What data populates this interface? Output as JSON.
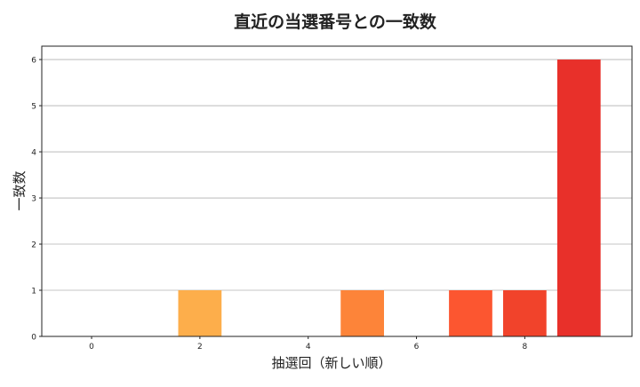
{
  "chart_data": {
    "type": "bar",
    "title": "直近の当選番号との一致数",
    "xlabel": "抽選回（新しい順）",
    "ylabel": "一致数",
    "x": [
      0,
      1,
      2,
      3,
      4,
      5,
      6,
      7,
      8,
      9
    ],
    "values": [
      0,
      0,
      1,
      0,
      0,
      1,
      0,
      1,
      1,
      6
    ],
    "colors": [
      "#fec25c",
      "#fdb851",
      "#fdae4b",
      "#fd9f44",
      "#fd913e",
      "#fd8439",
      "#fc6d33",
      "#fc5630",
      "#f1432b",
      "#e8302a"
    ],
    "xticks": [
      0,
      2,
      4,
      6,
      8
    ],
    "yticks": [
      0,
      1,
      2,
      3,
      4,
      5,
      6
    ],
    "xlim": [
      -0.92,
      9.98
    ],
    "ylim": [
      0,
      6.29
    ],
    "grid": "y",
    "legend": "none"
  }
}
